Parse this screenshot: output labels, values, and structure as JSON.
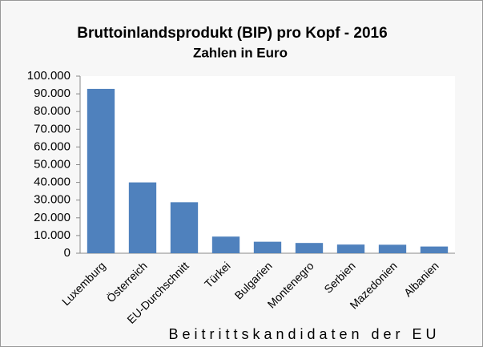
{
  "chart_data": {
    "type": "bar",
    "title": "Bruttoinlandsprodukt (BIP) pro Kopf - 2016",
    "subtitle": "Zahlen in Euro",
    "x_label": "Beitrittskandidaten der EU",
    "categories": [
      "Luxemburg",
      "Österreich",
      "EU-Durchschnitt",
      "Türkei",
      "Bulgarien",
      "Montenegro",
      "Serbien",
      "Mazedonien",
      "Albanien"
    ],
    "values": [
      92800,
      40000,
      28800,
      9400,
      6500,
      5800,
      4900,
      4800,
      3800
    ],
    "color": "#4f81bd",
    "ylim": [
      0,
      100000
    ],
    "yticks": [
      0,
      {
        "value": 10000,
        "label": "10.000"
      },
      {
        "value": 20000,
        "label": "20.000"
      },
      {
        "value": 30000,
        "label": "30.000"
      },
      {
        "value": 40000,
        "label": "40.000"
      },
      {
        "value": 50000,
        "label": "50.000"
      },
      {
        "value": 60000,
        "label": "60.000"
      },
      {
        "value": 70000,
        "label": "70.000"
      },
      {
        "value": 80000,
        "label": "80.000"
      },
      {
        "value": 90000,
        "label": "90.000"
      },
      {
        "value": 100000,
        "label": "100.000"
      }
    ],
    "grid": false
  }
}
